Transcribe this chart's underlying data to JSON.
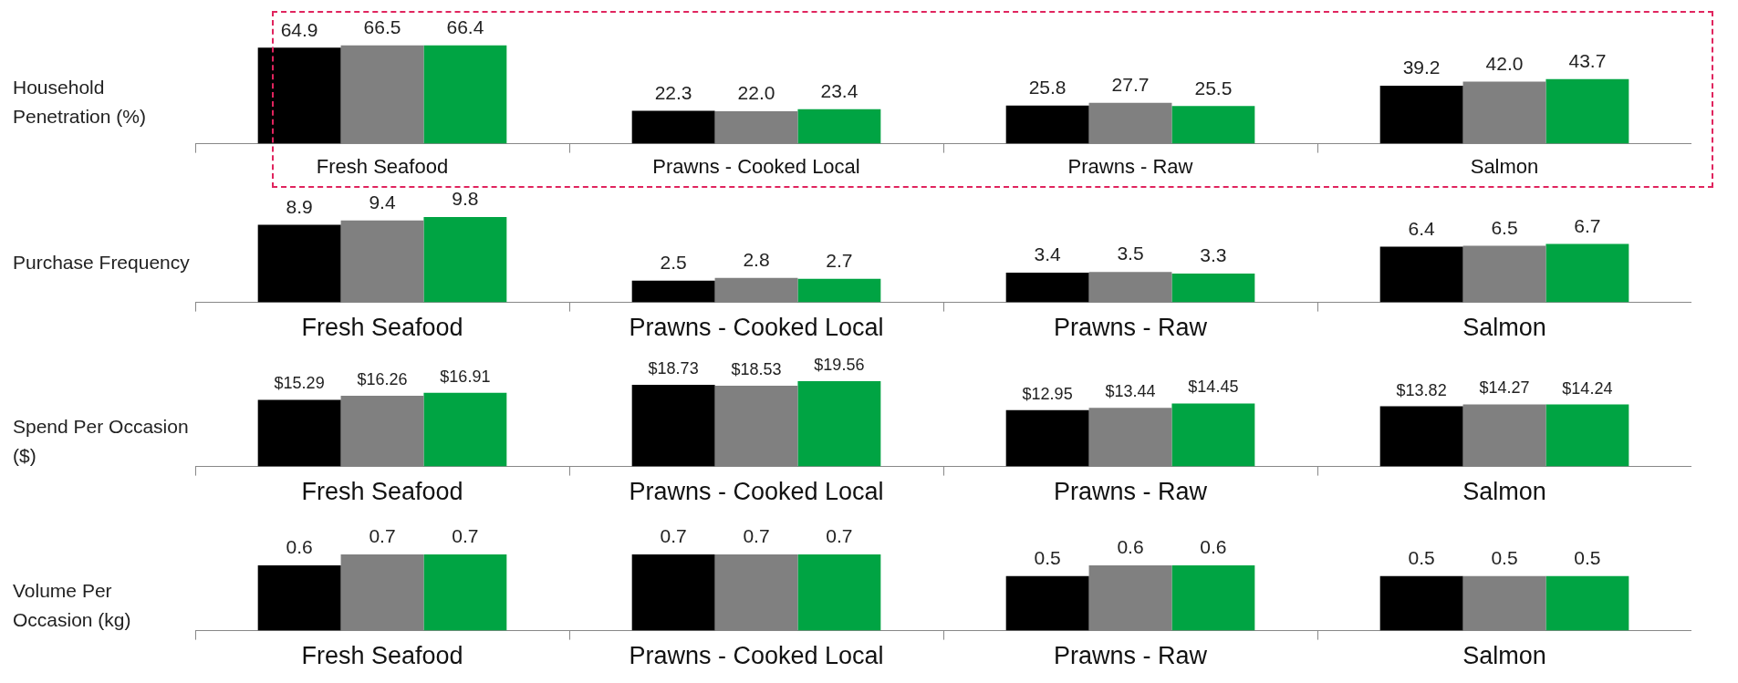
{
  "chart_data": [
    {
      "type": "bar",
      "ylabel": "Household Penetration (%)",
      "categories": [
        "Fresh Seafood",
        "Prawns - Cooked Local",
        "Prawns - Raw",
        "Salmon"
      ],
      "series": [
        {
          "color": "#000000",
          "values": [
            64.9,
            22.3,
            25.8,
            39.2
          ],
          "value_labels": [
            "64.9",
            "22.3",
            "25.8",
            "39.2"
          ]
        },
        {
          "color": "#808080",
          "values": [
            66.5,
            22.0,
            27.7,
            42.0
          ],
          "value_labels": [
            "66.5",
            "22.0",
            "27.7",
            "42.0"
          ]
        },
        {
          "color": "#00a443",
          "values": [
            66.4,
            23.4,
            25.5,
            43.7
          ],
          "value_labels": [
            "66.4",
            "23.4",
            "25.5",
            "43.7"
          ]
        }
      ],
      "legend": false,
      "grid": false
    },
    {
      "type": "bar",
      "ylabel": "Purchase Frequency",
      "categories": [
        "Fresh Seafood",
        "Prawns - Cooked Local",
        "Prawns - Raw",
        "Salmon"
      ],
      "series": [
        {
          "color": "#000000",
          "values": [
            8.9,
            2.5,
            3.4,
            6.4
          ],
          "value_labels": [
            "8.9",
            "2.5",
            "3.4",
            "6.4"
          ]
        },
        {
          "color": "#808080",
          "values": [
            9.4,
            2.8,
            3.5,
            6.5
          ],
          "value_labels": [
            "9.4",
            "2.8",
            "3.5",
            "6.5"
          ]
        },
        {
          "color": "#00a443",
          "values": [
            9.8,
            2.7,
            3.3,
            6.7
          ],
          "value_labels": [
            "9.8",
            "2.7",
            "3.3",
            "6.7"
          ]
        }
      ],
      "legend": false,
      "grid": false
    },
    {
      "type": "bar",
      "ylabel": "Spend Per Occasion ($)",
      "categories": [
        "Fresh Seafood",
        "Prawns - Cooked Local",
        "Prawns - Raw",
        "Salmon"
      ],
      "series": [
        {
          "color": "#000000",
          "values": [
            15.29,
            18.73,
            12.95,
            13.82
          ],
          "value_labels": [
            "$15.29",
            "$18.73",
            "$12.95",
            "$13.82"
          ]
        },
        {
          "color": "#808080",
          "values": [
            16.26,
            18.53,
            13.44,
            14.27
          ],
          "value_labels": [
            "$16.26",
            "$18.53",
            "$13.44",
            "$14.27"
          ]
        },
        {
          "color": "#00a443",
          "values": [
            16.91,
            19.56,
            14.45,
            14.24
          ],
          "value_labels": [
            "$16.91",
            "$19.56",
            "$14.45",
            "$14.24"
          ]
        }
      ],
      "legend": false,
      "grid": false
    },
    {
      "type": "bar",
      "ylabel": "Volume Per Occasion (kg)",
      "categories": [
        "Fresh Seafood",
        "Prawns - Cooked Local",
        "Prawns - Raw",
        "Salmon"
      ],
      "series": [
        {
          "color": "#000000",
          "values": [
            0.6,
            0.7,
            0.5,
            0.5
          ],
          "value_labels": [
            "0.6",
            "0.7",
            "0.5",
            "0.5"
          ]
        },
        {
          "color": "#808080",
          "values": [
            0.7,
            0.7,
            0.6,
            0.5
          ],
          "value_labels": [
            "0.7",
            "0.7",
            "0.6",
            "0.5"
          ]
        },
        {
          "color": "#00a443",
          "values": [
            0.7,
            0.7,
            0.6,
            0.5
          ],
          "value_labels": [
            "0.7",
            "0.7",
            "0.6",
            "0.5"
          ]
        }
      ],
      "legend": false,
      "grid": false
    }
  ]
}
